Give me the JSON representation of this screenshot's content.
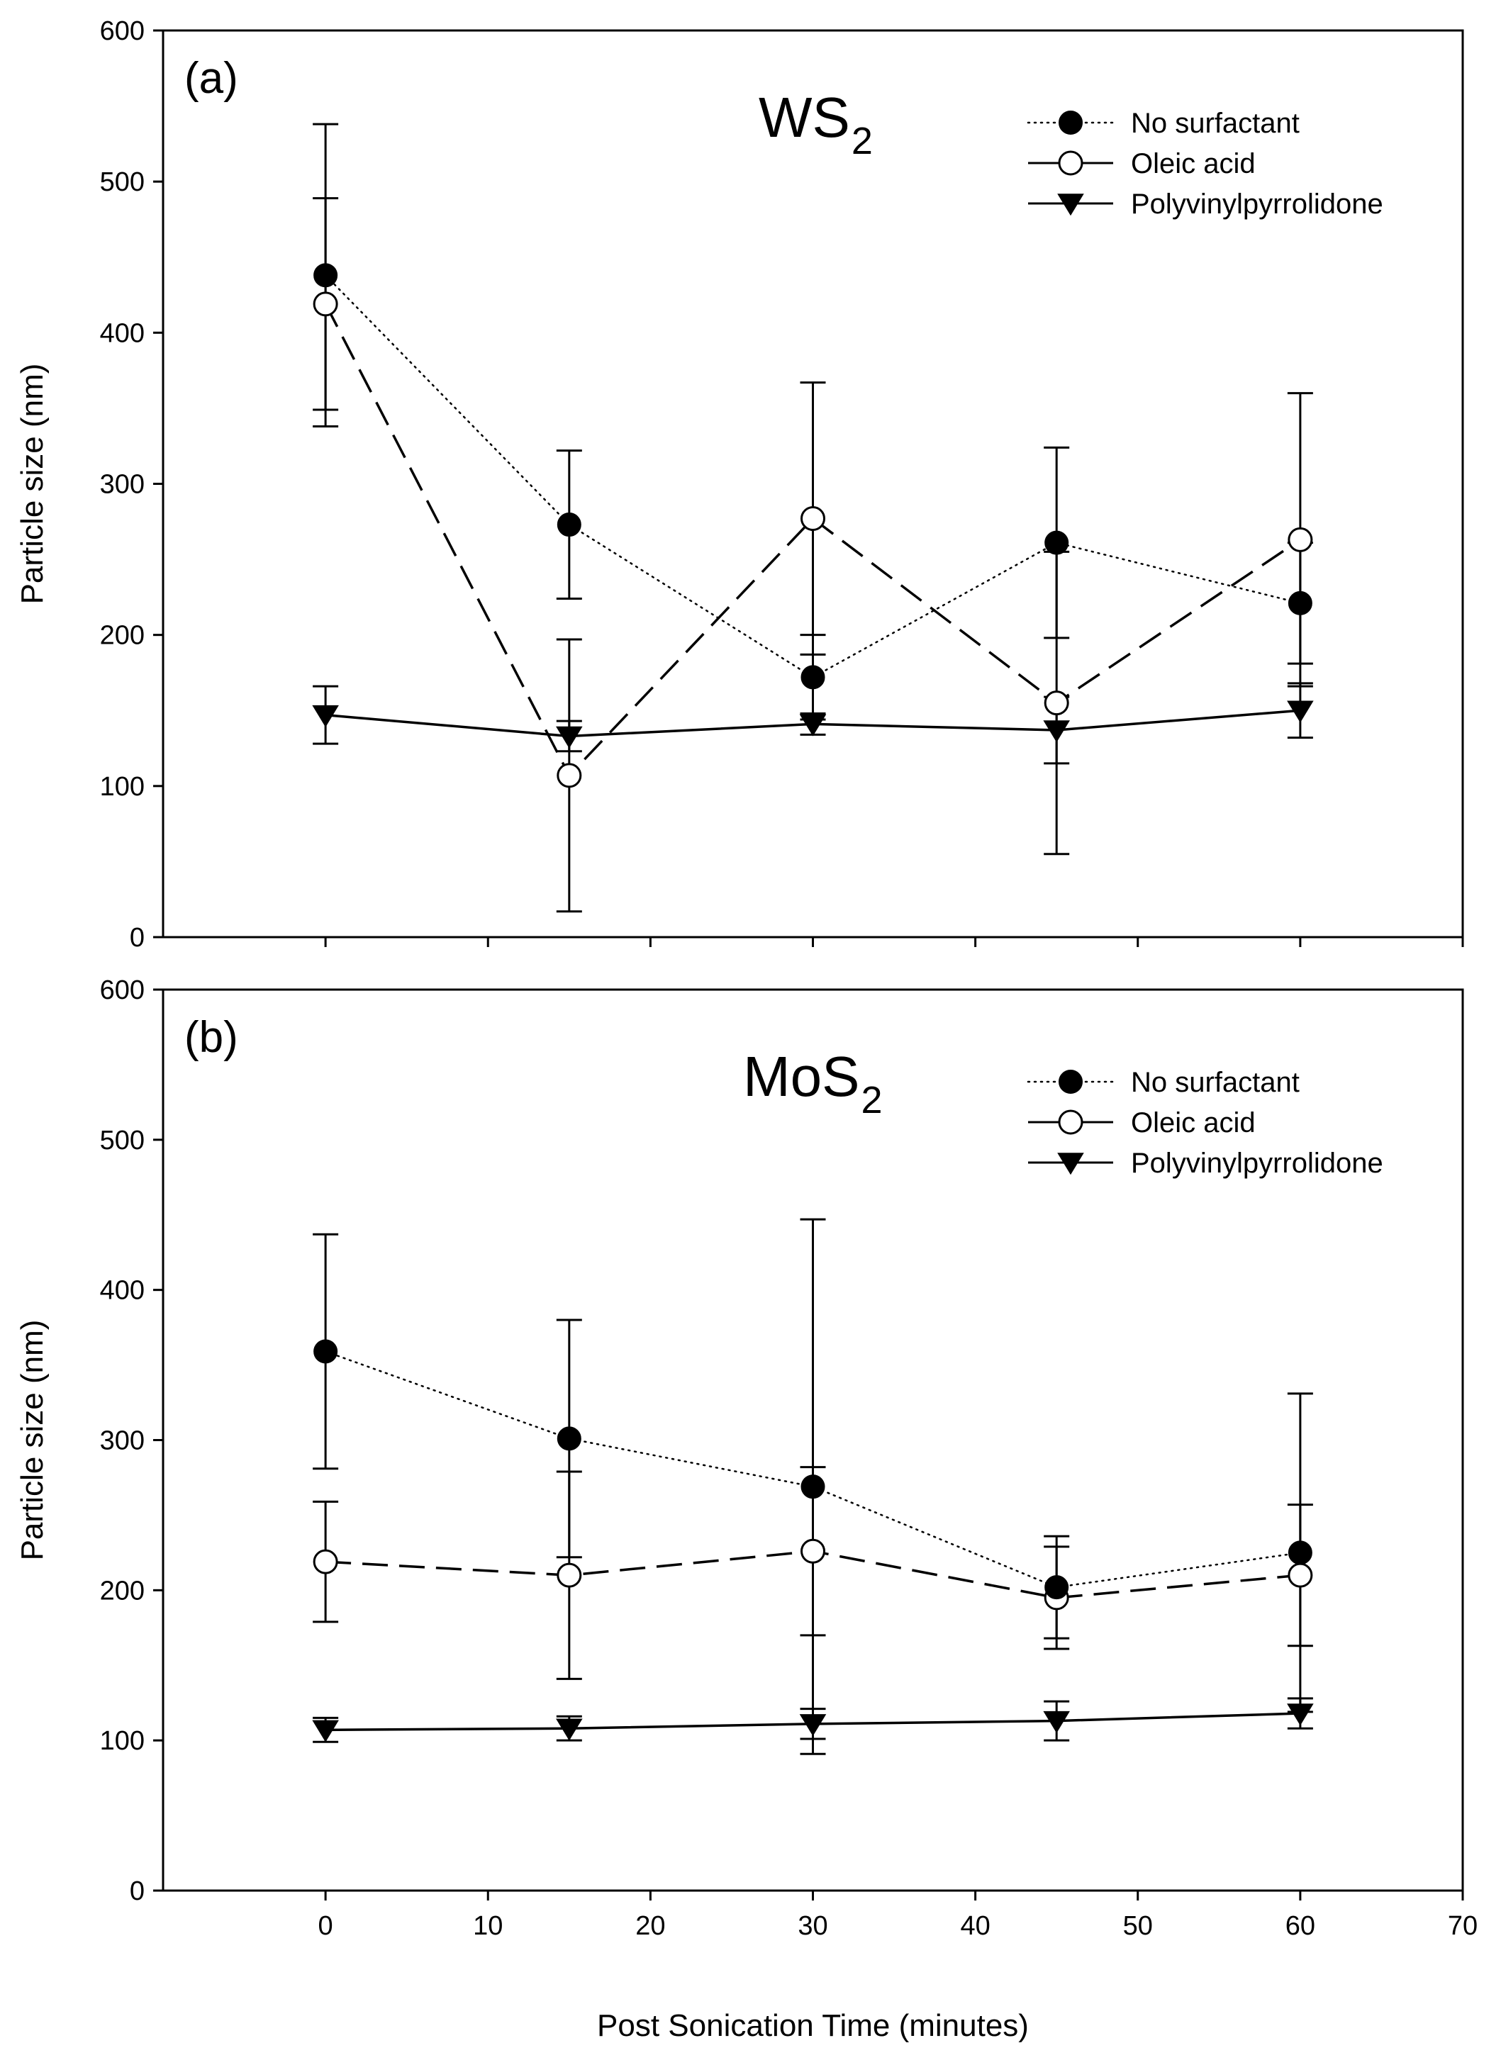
{
  "chart_data": [
    {
      "type": "line",
      "panel": "(a)",
      "title_main": "WS",
      "title_sub": "2",
      "xlabel": "",
      "ylabel": "Particle size (nm)",
      "xlim": [
        -10,
        70
      ],
      "ylim": [
        0,
        600
      ],
      "yticks": [
        0,
        100,
        200,
        300,
        400,
        500,
        600
      ],
      "x": [
        0,
        15,
        30,
        45,
        60
      ],
      "legend_position": "top-right",
      "series": [
        {
          "name": "No surfactant",
          "style": "dotted",
          "marker": "filled-circle",
          "values": [
            438,
            273,
            172,
            261,
            221
          ],
          "errors": [
            100,
            49,
            28,
            63,
            40
          ]
        },
        {
          "name": "Oleic acid",
          "style": "dashed",
          "marker": "open-circle",
          "values": [
            419,
            107,
            277,
            155,
            263
          ],
          "errors": [
            70,
            90,
            90,
            100,
            97
          ]
        },
        {
          "name": "Polyvinylpyrrolidone",
          "style": "solid",
          "marker": "filled-triangle-down",
          "values": [
            147,
            133,
            141,
            137,
            150
          ],
          "errors": [
            19,
            10,
            7,
            22,
            18
          ]
        }
      ]
    },
    {
      "type": "line",
      "panel": "(b)",
      "title_main": "MoS",
      "title_sub": "2",
      "xlabel": "Post Sonication Time (minutes)",
      "ylabel": "Particle size (nm)",
      "xlim": [
        -10,
        70
      ],
      "ylim": [
        0,
        600
      ],
      "yticks": [
        0,
        100,
        200,
        300,
        400,
        500,
        600
      ],
      "xticks": [
        0,
        10,
        20,
        30,
        40,
        50,
        60,
        70
      ],
      "x": [
        0,
        15,
        30,
        45,
        60
      ],
      "legend_position": "top-right",
      "series": [
        {
          "name": "No surfactant",
          "style": "dotted",
          "marker": "filled-circle",
          "values": [
            359,
            301,
            269,
            202,
            225
          ],
          "errors": [
            78,
            79,
            178,
            34,
            106
          ]
        },
        {
          "name": "Oleic acid",
          "style": "dashed",
          "marker": "open-circle",
          "values": [
            219,
            210,
            226,
            195,
            210
          ],
          "errors": [
            40,
            69,
            56,
            34,
            47
          ]
        },
        {
          "name": "Polyvinylpyrrolidone",
          "style": "solid",
          "marker": "filled-triangle-down",
          "values": [
            107,
            108,
            111,
            113,
            118
          ],
          "errors": [
            8,
            8,
            10,
            13,
            10
          ]
        }
      ]
    }
  ]
}
